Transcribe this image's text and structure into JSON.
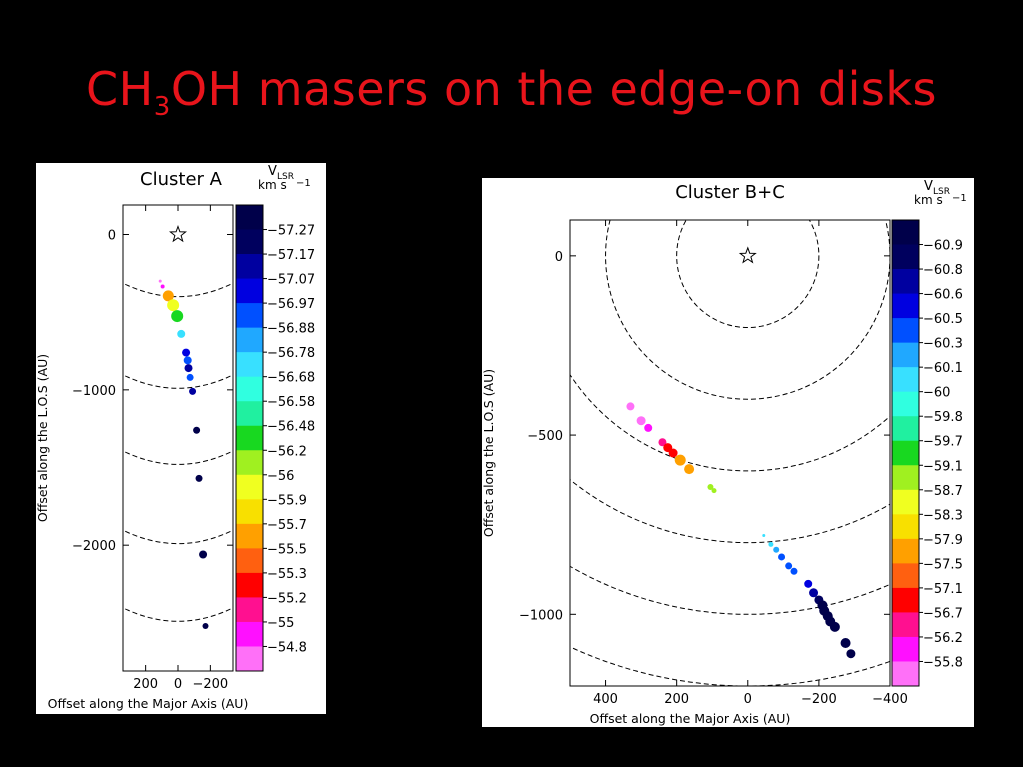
{
  "slide": {
    "title_pre": "CH",
    "title_sub": "3",
    "title_post": "OH masers on the edge-on disks"
  },
  "chart_data": [
    {
      "type": "scatter",
      "title": "Cluster A",
      "xlabel": "Offset along the Major Axis (AU)",
      "ylabel": "Offset along the L.O.S (AU)",
      "xlim": [
        340,
        -340
      ],
      "ylim": [
        -2810,
        190
      ],
      "x_ticks": [
        200,
        0,
        -200
      ],
      "x_tick_labels": [
        "200",
        "0",
        "−200"
      ],
      "y_ticks": [
        0,
        -1000,
        -2000
      ],
      "y_tick_labels": [
        "0",
        "−1000",
        "−2000"
      ],
      "star": {
        "x": 0,
        "y": 0
      },
      "dashed_arcs": [
        {
          "y_center": -400
        },
        {
          "y_center": -990
        },
        {
          "y_center": -1480
        },
        {
          "y_center": -1990
        },
        {
          "y_center": -2490
        }
      ],
      "colorbar": {
        "label_main": "V",
        "label_sub": "LSR",
        "label_unit": "km s",
        "label_exp": "−1",
        "labels": [
          "−57.27",
          "−57.17",
          "−57.07",
          "−56.97",
          "−56.88",
          "−56.78",
          "−56.68",
          "−56.58",
          "−56.48",
          "−56.2",
          "−56",
          "−55.9",
          "−55.7",
          "−55.5",
          "−55.3",
          "−55.2",
          "−55",
          "−54.8"
        ],
        "colors": [
          "#00004a",
          "#00005e",
          "#0000a0",
          "#0000e0",
          "#0050ff",
          "#20a8ff",
          "#38e0ff",
          "#30ffe0",
          "#20f0a0",
          "#18d820",
          "#a0f020",
          "#f0ff20",
          "#f8e000",
          "#ffa000",
          "#ff6010",
          "#ff0000",
          "#ff1090",
          "#ff10ff",
          "#ff70f8"
        ]
      },
      "points": [
        {
          "x": 110,
          "y": -300,
          "size": 1.5,
          "color": "#ff70f8"
        },
        {
          "x": 95,
          "y": -335,
          "size": 2,
          "color": "#ff10ff"
        },
        {
          "x": 60,
          "y": -395,
          "size": 5.5,
          "color": "#ffa000"
        },
        {
          "x": 30,
          "y": -455,
          "size": 6,
          "color": "#f0ff20"
        },
        {
          "x": 5,
          "y": -525,
          "size": 6,
          "color": "#18d820"
        },
        {
          "x": -20,
          "y": -640,
          "size": 4,
          "color": "#38e0ff"
        },
        {
          "x": -50,
          "y": -760,
          "size": 4,
          "color": "#0000e0"
        },
        {
          "x": -60,
          "y": -810,
          "size": 4,
          "color": "#0050ff"
        },
        {
          "x": -65,
          "y": -860,
          "size": 4,
          "color": "#0000a0"
        },
        {
          "x": -75,
          "y": -920,
          "size": 3.5,
          "color": "#0050ff"
        },
        {
          "x": -90,
          "y": -1010,
          "size": 3.5,
          "color": "#0000a0"
        },
        {
          "x": -115,
          "y": -1260,
          "size": 3.5,
          "color": "#00004a"
        },
        {
          "x": -130,
          "y": -1570,
          "size": 3.5,
          "color": "#00004a"
        },
        {
          "x": -155,
          "y": -2060,
          "size": 4,
          "color": "#00004a"
        },
        {
          "x": -170,
          "y": -2520,
          "size": 3,
          "color": "#00004a"
        }
      ]
    },
    {
      "type": "scatter",
      "title": "Cluster B+C",
      "xlabel": "Offset along the Major Axis (AU)",
      "ylabel": "Offset along the L.O.S (AU)",
      "xlim": [
        500,
        -400
      ],
      "ylim": [
        -1200,
        100
      ],
      "x_ticks": [
        400,
        200,
        0,
        -200,
        -400
      ],
      "x_tick_labels": [
        "400",
        "200",
        "0",
        "−200",
        "−400"
      ],
      "y_ticks": [
        0,
        -500,
        -1000
      ],
      "y_tick_labels": [
        "0",
        "−500",
        "−1000"
      ],
      "star": {
        "x": 0,
        "y": 0
      },
      "dashed_arcs": [
        {
          "radius": 200
        },
        {
          "radius": 400
        },
        {
          "radius": 600
        },
        {
          "radius": 800
        },
        {
          "radius": 1000
        },
        {
          "radius": 1200
        }
      ],
      "colorbar": {
        "label_main": "V",
        "label_sub": "LSR",
        "label_unit": "km s",
        "label_exp": "−1",
        "labels": [
          "−60.9",
          "−60.8",
          "−60.6",
          "−60.5",
          "−60.3",
          "−60.1",
          "−60",
          "−59.8",
          "−59.7",
          "−59.1",
          "−58.7",
          "−58.3",
          "−57.9",
          "−57.5",
          "−57.1",
          "−56.7",
          "−56.2",
          "−55.8"
        ],
        "colors": [
          "#00004a",
          "#00005e",
          "#0000a0",
          "#0000e0",
          "#0050ff",
          "#20a8ff",
          "#38e0ff",
          "#30ffe0",
          "#20f0a0",
          "#18d820",
          "#a0f020",
          "#f0ff20",
          "#f8e000",
          "#ffa000",
          "#ff6010",
          "#ff0000",
          "#ff1090",
          "#ff10ff",
          "#ff70f8"
        ]
      },
      "points": [
        {
          "x": 330,
          "y": -420,
          "size": 4,
          "color": "#ff70f8"
        },
        {
          "x": 300,
          "y": -460,
          "size": 4.5,
          "color": "#ff70f8"
        },
        {
          "x": 280,
          "y": -480,
          "size": 4,
          "color": "#ff10ff"
        },
        {
          "x": 240,
          "y": -520,
          "size": 4,
          "color": "#ff1090"
        },
        {
          "x": 225,
          "y": -535,
          "size": 4.5,
          "color": "#ff0000"
        },
        {
          "x": 210,
          "y": -550,
          "size": 4.5,
          "color": "#ff0000"
        },
        {
          "x": 190,
          "y": -570,
          "size": 5.5,
          "color": "#ffa000"
        },
        {
          "x": 165,
          "y": -595,
          "size": 5,
          "color": "#ffa000"
        },
        {
          "x": 105,
          "y": -645,
          "size": 3,
          "color": "#a0f020"
        },
        {
          "x": 95,
          "y": -655,
          "size": 2.5,
          "color": "#a0f020"
        },
        {
          "x": -45,
          "y": -780,
          "size": 1.5,
          "color": "#38e0ff"
        },
        {
          "x": -65,
          "y": -805,
          "size": 2.5,
          "color": "#38e0ff"
        },
        {
          "x": -80,
          "y": -820,
          "size": 3,
          "color": "#20a8ff"
        },
        {
          "x": -95,
          "y": -840,
          "size": 3.5,
          "color": "#0050ff"
        },
        {
          "x": -115,
          "y": -865,
          "size": 3.5,
          "color": "#0050ff"
        },
        {
          "x": -130,
          "y": -880,
          "size": 3.5,
          "color": "#0050ff"
        },
        {
          "x": -170,
          "y": -915,
          "size": 4,
          "color": "#0000e0"
        },
        {
          "x": -185,
          "y": -940,
          "size": 4.5,
          "color": "#0000a0"
        },
        {
          "x": -200,
          "y": -960,
          "size": 4.5,
          "color": "#00005e"
        },
        {
          "x": -210,
          "y": -975,
          "size": 5,
          "color": "#00004a"
        },
        {
          "x": -215,
          "y": -990,
          "size": 5,
          "color": "#00004a"
        },
        {
          "x": -225,
          "y": -1005,
          "size": 5,
          "color": "#00004a"
        },
        {
          "x": -232,
          "y": -1020,
          "size": 5,
          "color": "#00004a"
        },
        {
          "x": -245,
          "y": -1035,
          "size": 5,
          "color": "#00004a"
        },
        {
          "x": -275,
          "y": -1080,
          "size": 5,
          "color": "#00004a"
        },
        {
          "x": -290,
          "y": -1110,
          "size": 4.5,
          "color": "#00004a"
        }
      ]
    }
  ]
}
